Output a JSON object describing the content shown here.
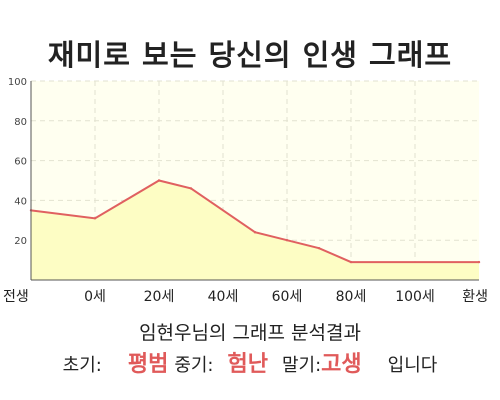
{
  "title": "재미로 보는 당신의 인생 그래프",
  "chart_data": {
    "type": "area",
    "x_labels": [
      "전생",
      "0세",
      "20세",
      "40세",
      "60세",
      "80세",
      "100세",
      "환생"
    ],
    "y_ticks": [
      20,
      40,
      60,
      80,
      100
    ],
    "ylim": [
      0,
      100
    ],
    "grid": true,
    "fill_color": "#fdfdc4",
    "line_color": "#e06060",
    "plot_bg": "#fffff0",
    "points": [
      {
        "x": 0,
        "y": 35
      },
      {
        "x": 1,
        "y": 31
      },
      {
        "x": 2,
        "y": 50
      },
      {
        "x": 2.5,
        "y": 46
      },
      {
        "x": 3.5,
        "y": 24
      },
      {
        "x": 4,
        "y": 20
      },
      {
        "x": 4.5,
        "y": 16
      },
      {
        "x": 5,
        "y": 9
      },
      {
        "x": 7,
        "y": 9
      }
    ]
  },
  "result": {
    "heading": "임현우님의 그래프 분석결과",
    "early_label": "초기:",
    "early_value": "평범",
    "middle_label": "중기:",
    "middle_value": "험난",
    "late_label": "말기:",
    "late_value": "고생",
    "ending": "입니다",
    "highlight_color": "#e05a5a"
  }
}
